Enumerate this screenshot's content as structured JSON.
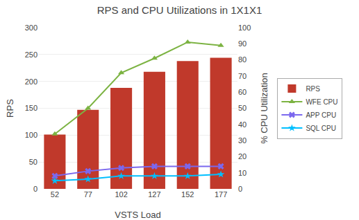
{
  "chart_data": {
    "type": "bar",
    "title": "RPS and CPU Utilizations in 1X1X1",
    "xlabel": "VSTS Load",
    "ylabel": "RPS",
    "y2label": "% CPU Utilization",
    "categories": [
      "52",
      "77",
      "102",
      "127",
      "152",
      "177"
    ],
    "series": [
      {
        "name": "RPS",
        "type": "bar",
        "color": "#C0392B",
        "values": [
          101,
          147,
          188,
          218,
          238,
          244
        ]
      },
      {
        "name": "WFE CPU",
        "type": "line",
        "axis": "y2",
        "color": "#7CB342",
        "marker": "triangle-up",
        "values": [
          34,
          50,
          72,
          81,
          91,
          89
        ]
      },
      {
        "name": "APP CPU",
        "type": "line",
        "axis": "y2",
        "color": "#7B68EE",
        "marker": "x",
        "values": [
          8,
          11,
          13,
          14,
          14,
          14
        ]
      },
      {
        "name": "SQL CPU",
        "type": "line",
        "axis": "y2",
        "color": "#00BFFF",
        "marker": "star",
        "values": [
          5,
          6,
          8,
          8,
          8,
          9
        ]
      }
    ],
    "ylim": [
      0,
      300
    ],
    "yticks": [
      0,
      50,
      100,
      150,
      200,
      250,
      300
    ],
    "y2lim": [
      0,
      100
    ],
    "y2ticks": [
      0,
      10,
      20,
      30,
      40,
      50,
      60,
      70,
      80,
      90,
      100
    ],
    "grid": true,
    "legend": "right"
  }
}
